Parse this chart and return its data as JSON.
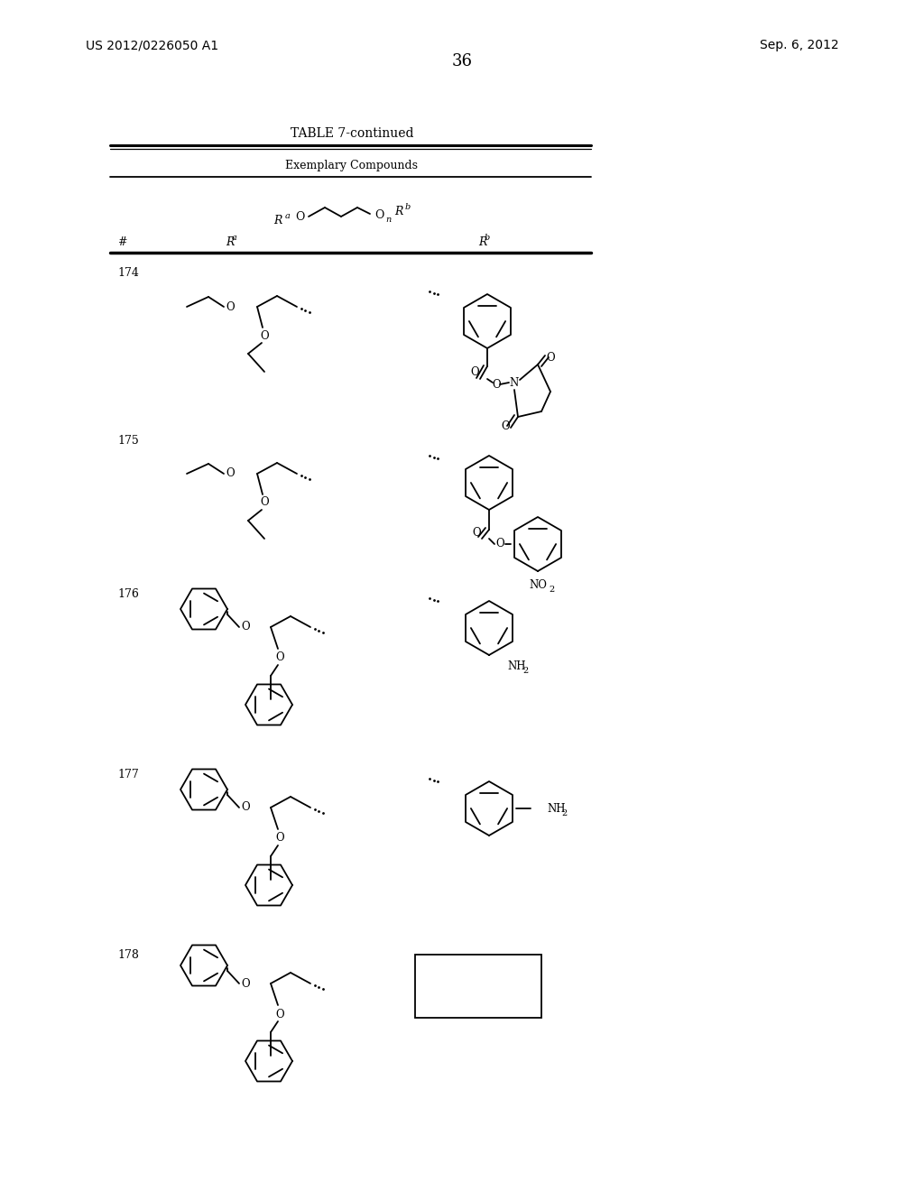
{
  "page_number": "36",
  "patent_number": "US 2012/0226050 A1",
  "patent_date": "Sep. 6, 2012",
  "table_title": "TABLE 7-continued",
  "table_subtitle": "Exemplary Compounds",
  "background_color": "#ffffff",
  "line_color": "#000000",
  "figsize": [
    10.24,
    13.2
  ],
  "dpi": 100
}
